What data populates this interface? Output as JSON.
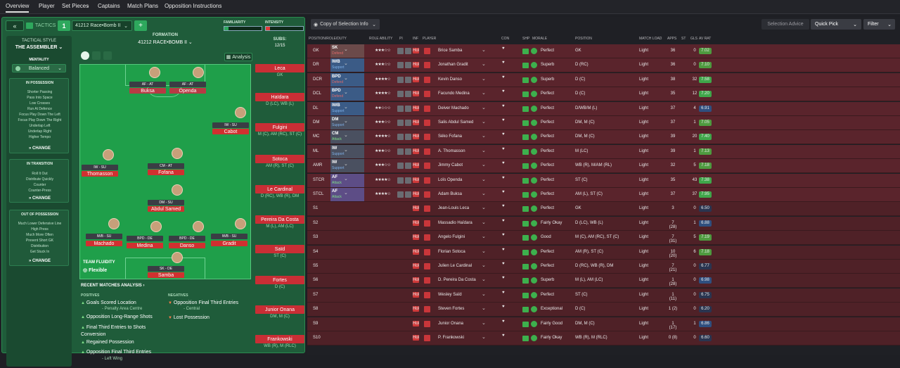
{
  "nav": {
    "tabs": [
      "Overview",
      "Player",
      "Set Pieces",
      "Captains",
      "Match Plans",
      "Opposition Instructions"
    ]
  },
  "tactics": {
    "label": "TACTICS",
    "slot": "1",
    "name": "41212 Race•Bomb II",
    "familiarity_label": "FAMILIARITY",
    "intensity_label": "INTENSITY",
    "formation_label": "FORMATION",
    "formation_name": "41212 RACE•BOMB II",
    "analysis": "Analysis",
    "subs_label": "SUBS:",
    "subs_count": "12/15",
    "style_label": "TACTICAL STYLE",
    "style_value": "THE ASSEMBLER",
    "mentality_label": "MENTALITY",
    "mentality_value": "Balanced",
    "in_possession": {
      "title": "IN POSSESSION",
      "lines": [
        "Shorter Passing",
        "Pass Into Space",
        "Low Crosses",
        "Run At Defence",
        "Focus Play Down The Left",
        "Focus Play Down The Right",
        "Underlap Left",
        "Underlap Right",
        "Higher Tempo"
      ]
    },
    "in_transition": {
      "title": "IN TRANSITION",
      "lines": [
        "Roll It Out",
        "Distribute Quickly",
        "Counter",
        "Counter-Press"
      ]
    },
    "out_of_possession": {
      "title": "OUT OF POSSESSION",
      "lines": [
        "Much Lower Defensive Line",
        "High Press",
        "Much More Often",
        "Prevent Short GK",
        "Distribution",
        "Get Stuck In"
      ]
    },
    "change": "CHANGE",
    "fluidity_label": "TEAM FLUIDITY",
    "fluidity_value": "Flexible"
  },
  "pitch_players": [
    {
      "role": "AF - AT",
      "name": "Buksa"
    },
    {
      "role": "AF - AT",
      "name": "Openda"
    },
    {
      "role": "IW - SU",
      "name": "Cabot"
    },
    {
      "role": "IW - SU",
      "name": "Thomasson"
    },
    {
      "role": "CM - AT",
      "name": "Fofana"
    },
    {
      "role": "DM - SU",
      "name": "Abdul Samed"
    },
    {
      "role": "IWB - SU",
      "name": "Machado"
    },
    {
      "role": "BPD - DE",
      "name": "Medina"
    },
    {
      "role": "BPD - DE",
      "name": "Danso"
    },
    {
      "role": "IWB - SU",
      "name": "Gradit"
    },
    {
      "role": "SK - DE",
      "name": "Samba"
    }
  ],
  "subs": [
    {
      "name": "Leca",
      "pos": "GK"
    },
    {
      "name": "Haïdara",
      "pos": "D (LC), WB (L)"
    },
    {
      "name": "Fulgini",
      "pos": "M (C), AM (RC), ST (C)"
    },
    {
      "name": "Sotoca",
      "pos": "AM (R), ST (C)"
    },
    {
      "name": "Le Cardinal",
      "pos": "D (RC), WB (R), DM"
    },
    {
      "name": "Pereira Da Costa",
      "pos": "M (L), AM (LC)"
    },
    {
      "name": "Saïd",
      "pos": "ST (C)"
    },
    {
      "name": "Fortes",
      "pos": "D (C)"
    },
    {
      "name": "Junior Onana",
      "pos": "DM, M (C)"
    },
    {
      "name": "Frankowski",
      "pos": "WB (R), M (RLC)"
    }
  ],
  "recent": {
    "title": "RECENT MATCHES ANALYSIS",
    "positives_label": "POSITIVES",
    "negatives_label": "NEGATIVES",
    "positives": [
      {
        "main": "Goals Scored Location",
        "sub": "- Penalty Area Centre"
      },
      {
        "main": "Opposition Long-Range Shots",
        "sub": ""
      },
      {
        "main": "Final Third Entries to Shots Conversion",
        "sub": ""
      },
      {
        "main": "Regained Possession",
        "sub": ""
      },
      {
        "main": "Opposition Final Third Entries",
        "sub": "- Left Wing"
      }
    ],
    "negatives": [
      {
        "main": "Opposition Final Third Entries",
        "sub": "- Central"
      },
      {
        "main": "Lost Possession",
        "sub": ""
      }
    ]
  },
  "squad": {
    "view": "Copy of Selection Info",
    "selection_advice": "Selection Advice",
    "quick_pick": "Quick Pick",
    "filter": "Filter",
    "columns": [
      "POSITION/ROLE/DUTY",
      "ROLE ABILITY",
      "PI",
      "INF",
      "PLAYER",
      "CON",
      "SHP",
      "MORALE",
      "POSITION",
      "MATCH LOAD",
      "APPS",
      "ST",
      "GLS",
      "AV RAT"
    ],
    "rows": [
      {
        "pos": "GK",
        "role": "SK",
        "duty": "Defend",
        "stars": "★★★☆☆",
        "name": "Brice Samba",
        "morale": "Perfect",
        "position": "GK",
        "load": "Light",
        "apps": "36",
        "gls": "0",
        "rat": "7.02"
      },
      {
        "pos": "DR",
        "role": "IWB",
        "duty": "Support",
        "stars": "★★★☆☆",
        "name": "Jonathan Gradit",
        "morale": "Superb",
        "position": "D (RC)",
        "load": "Light",
        "apps": "36",
        "gls": "0",
        "rat": "7.10"
      },
      {
        "pos": "DCR",
        "role": "BPD",
        "duty": "Defend",
        "stars": "★★★★☆",
        "name": "Kevin Danso",
        "morale": "Superb",
        "position": "D (C)",
        "load": "Light",
        "apps": "38",
        "gls": "32",
        "rat": "7.58"
      },
      {
        "pos": "DCL",
        "role": "BPD",
        "duty": "Defend",
        "stars": "★★★★☆",
        "name": "Facundo Medina",
        "morale": "Perfect",
        "position": "D (C)",
        "load": "Light",
        "apps": "35",
        "gls": "12",
        "rat": "7.20"
      },
      {
        "pos": "DL",
        "role": "IWB",
        "duty": "Support",
        "stars": "★★☆☆☆",
        "name": "Deiver Machado",
        "morale": "Perfect",
        "position": "D/WB/M (L)",
        "load": "Light",
        "apps": "37",
        "gls": "4",
        "rat": "6.91"
      },
      {
        "pos": "DM",
        "role": "DM",
        "duty": "Support",
        "stars": "★★★☆☆",
        "name": "Salis Abdul Samed",
        "morale": "Perfect",
        "position": "DM, M (C)",
        "load": "Light",
        "apps": "37",
        "gls": "1",
        "rat": "7.05"
      },
      {
        "pos": "MC",
        "role": "CM",
        "duty": "Attack",
        "stars": "★★★★☆",
        "name": "Séko Fofana",
        "morale": "Perfect",
        "position": "DM, M (C)",
        "load": "Light",
        "apps": "39",
        "gls": "20",
        "rat": "7.40"
      },
      {
        "pos": "ML",
        "role": "IW",
        "duty": "Support",
        "stars": "★★★☆☆",
        "name": "A. Thomasson",
        "morale": "Perfect",
        "position": "M (LC)",
        "load": "Light",
        "apps": "39",
        "gls": "1",
        "rat": "7.13"
      },
      {
        "pos": "AMR",
        "role": "IW",
        "duty": "Support",
        "stars": "★★★☆☆",
        "name": "Jimmy Cabot",
        "morale": "Perfect",
        "position": "WB (R), M/AM (RL)",
        "load": "Light",
        "apps": "32",
        "gls": "5",
        "rat": "7.18"
      },
      {
        "pos": "STCR",
        "role": "AF",
        "duty": "Attack",
        "stars": "★★★★☆",
        "name": "Loïs Openda",
        "morale": "Perfect",
        "position": "ST (C)",
        "load": "Light",
        "apps": "35",
        "gls": "43",
        "rat": "7.38"
      },
      {
        "pos": "STCL",
        "role": "AF",
        "duty": "Attack",
        "stars": "★★★★☆",
        "name": "Adam Buksa",
        "morale": "Perfect",
        "position": "AM (L), ST (C)",
        "load": "Light",
        "apps": "37",
        "gls": "37",
        "rat": "7.95"
      },
      {
        "pos": "S1",
        "role": "",
        "duty": "",
        "stars": "",
        "name": "Jean-Louis Leca",
        "morale": "Perfect",
        "position": "GK",
        "load": "Light",
        "apps": "3",
        "gls": "0",
        "rat": "6.50"
      },
      {
        "pos": "S2",
        "role": "",
        "duty": "",
        "stars": "",
        "name": "Massadio Haïdara",
        "morale": "Fairly Okay",
        "position": "D (LC), WB (L)",
        "load": "Light",
        "apps": "7 (28)",
        "gls": "1",
        "rat": "6.88"
      },
      {
        "pos": "S3",
        "role": "",
        "duty": "",
        "stars": "",
        "name": "Angelo Fulgini",
        "morale": "Good",
        "position": "M (C), AM (RC), ST (C)",
        "load": "Light",
        "apps": "7 (31)",
        "gls": "5",
        "rat": "7.19"
      },
      {
        "pos": "S4",
        "role": "",
        "duty": "",
        "stars": "",
        "name": "Florian Sotoca",
        "morale": "Perfect",
        "position": "AM (R), ST (C)",
        "load": "Light",
        "apps": "10 (20)",
        "gls": "6",
        "rat": "7.18"
      },
      {
        "pos": "S5",
        "role": "",
        "duty": "",
        "stars": "",
        "name": "Julien Le Cardinal",
        "morale": "Perfect",
        "position": "D (RC), WB (R), DM",
        "load": "Light",
        "apps": "7 (21)",
        "gls": "0",
        "rat": "6.77"
      },
      {
        "pos": "S6",
        "role": "",
        "duty": "",
        "stars": "",
        "name": "D. Pereira Da Costa",
        "morale": "Superb",
        "position": "M (L), AM (LC)",
        "load": "Light",
        "apps": "1 (28)",
        "gls": "0",
        "rat": "6.98"
      },
      {
        "pos": "S7",
        "role": "",
        "duty": "",
        "stars": "",
        "name": "Wesley Saïd",
        "morale": "Perfect",
        "position": "ST (C)",
        "load": "Light",
        "apps": "1 (11)",
        "gls": "0",
        "rat": "6.75"
      },
      {
        "pos": "S8",
        "role": "",
        "duty": "",
        "stars": "",
        "name": "Steven Fortes",
        "morale": "Exceptional",
        "position": "D (C)",
        "load": "Light",
        "apps": "1 (2)",
        "gls": "0",
        "rat": "6.20"
      },
      {
        "pos": "S9",
        "role": "",
        "duty": "",
        "stars": "",
        "name": "Junior Onana",
        "morale": "Fairly Good",
        "position": "DM, M (C)",
        "load": "Light",
        "apps": "1 (17)",
        "gls": "1",
        "rat": "6.86"
      },
      {
        "pos": "S10",
        "role": "",
        "duty": "",
        "stars": "",
        "name": "P. Frankowski",
        "morale": "Fairly Okay",
        "position": "WB (R), M (RLC)",
        "load": "Light",
        "apps": "0 (8)",
        "gls": "0",
        "rat": "6.60"
      }
    ]
  },
  "colors": {
    "accent_green": "#2ea85d",
    "pitch": "#1f9f4a",
    "row_bg": "#5a242c",
    "gk_role": "#6b4a4a",
    "def_role": "#3b5b86",
    "mid_role": "#4a5060",
    "att_role": "#5d4d86"
  }
}
